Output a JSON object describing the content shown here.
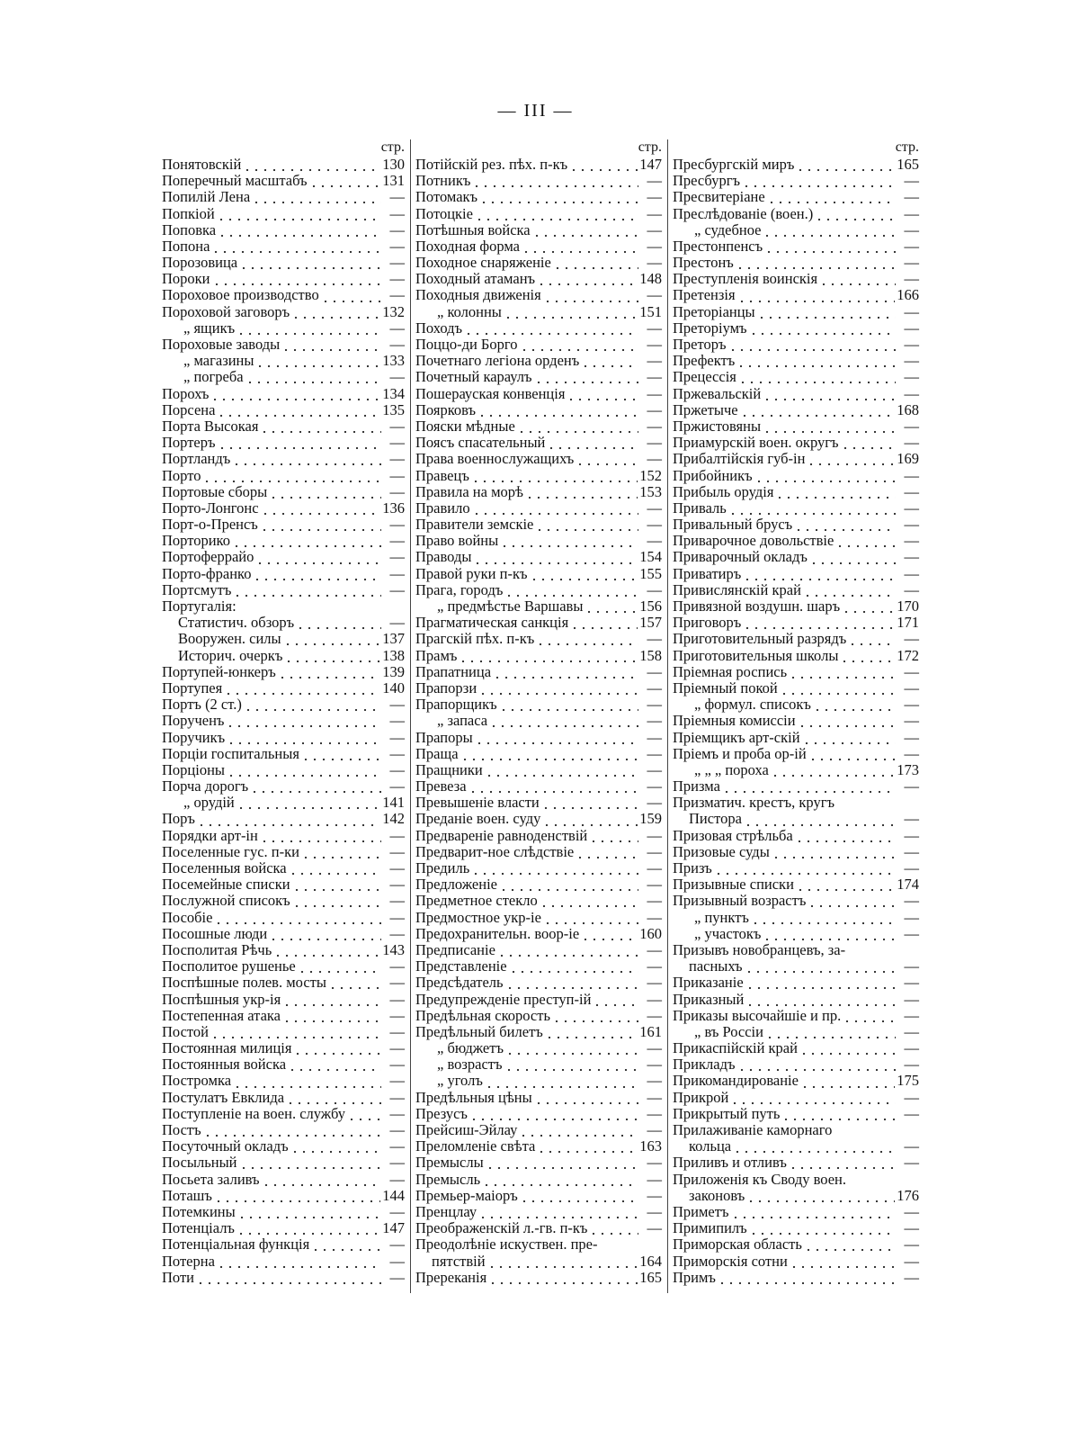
{
  "header": {
    "page_number": "— III —"
  },
  "columns": [
    {
      "page_heading": "стр.",
      "entries": [
        {
          "label": "Понятовскій",
          "page": 130
        },
        {
          "label": "Поперечный масштабъ",
          "page": 131
        },
        {
          "label": "Попилій Лена",
          "page": "—"
        },
        {
          "label": "Попкіой",
          "page": "—"
        },
        {
          "label": "Поповка",
          "page": "—"
        },
        {
          "label": "Попона",
          "page": "—"
        },
        {
          "label": "Порозовица",
          "page": "—"
        },
        {
          "label": "Пороки",
          "page": "—"
        },
        {
          "label": "Пороховое производство",
          "page": "—"
        },
        {
          "label": "Пороховой заговоръ",
          "page": 132
        },
        {
          "label": "„ ящикъ",
          "page": "—"
        },
        {
          "label": "Пороховые заводы",
          "page": "—"
        },
        {
          "label": "„ магазины",
          "page": 133
        },
        {
          "label": "„ погреба",
          "page": "—"
        },
        {
          "label": "Порохъ",
          "page": 134
        },
        {
          "label": "Порсена",
          "page": 135
        },
        {
          "label": "Порта Высокая",
          "page": "—"
        },
        {
          "label": "Портеръ",
          "page": "—"
        },
        {
          "label": "Портландъ",
          "page": "—"
        },
        {
          "label": "Порто",
          "page": "—"
        },
        {
          "label": "Портовые сборы",
          "page": "—"
        },
        {
          "label": "Порто-Лонгонс",
          "page": 136
        },
        {
          "label": "Порт-о-Пренсъ",
          "page": "—"
        },
        {
          "label": "Порторико",
          "page": "—"
        },
        {
          "label": "Портоферрайо",
          "page": "—"
        },
        {
          "label": "Порто-франко",
          "page": "—"
        },
        {
          "label": "Портсмутъ",
          "page": "—"
        },
        {
          "label": "Португалія:",
          "subentries": [
            {
              "label": "Статистич. обзоръ",
              "page": "—"
            },
            {
              "label": "Вооружен. силы",
              "page": 137
            },
            {
              "label": "Историч. очеркъ",
              "page": 138
            }
          ]
        },
        {
          "label": "Портупей-юнкеръ",
          "page": 139
        },
        {
          "label": "Портупея",
          "page": 140
        },
        {
          "label": "Портъ (2 ст.)",
          "page": "—"
        },
        {
          "label": "Порученъ",
          "page": "—"
        },
        {
          "label": "Поручикъ",
          "page": "—"
        },
        {
          "label": "Порціи госпитальныя",
          "page": "—"
        },
        {
          "label": "Порціоны",
          "page": "—"
        },
        {
          "label": "Порча дорогъ",
          "page": "—"
        },
        {
          "label": "„ орудій",
          "page": 141
        },
        {
          "label": "Поръ",
          "page": 142
        },
        {
          "label": "Порядки арт-ін",
          "page": "—"
        },
        {
          "label": "Поселенные гус. п-ки",
          "page": "—"
        },
        {
          "label": "Поселенныя войска",
          "page": "—"
        },
        {
          "label": "Посемейные списки",
          "page": "—"
        },
        {
          "label": "Послужной списокъ",
          "page": "—"
        },
        {
          "label": "Пособіе",
          "page": "—"
        },
        {
          "label": "Посошные люди",
          "page": "—"
        },
        {
          "label": "Посполитая Рѣчь",
          "page": 143
        },
        {
          "label": "Посполитое рушенье",
          "page": "—"
        },
        {
          "label": "Поспѣшные полев. мосты",
          "page": "—"
        },
        {
          "label": "Поспѣшныя укр-ія",
          "page": "—"
        },
        {
          "label": "Постепенная атака",
          "page": "—"
        },
        {
          "label": "Постой",
          "page": "—"
        },
        {
          "label": "Постоянная милиція",
          "page": "—"
        },
        {
          "label": "Постоянныя войска",
          "page": "—"
        },
        {
          "label": "Постромка",
          "page": "—"
        },
        {
          "label": "Постулатъ Евклида",
          "page": "—"
        },
        {
          "label": "Поступленіе на воен. службу",
          "page": "—"
        },
        {
          "label": "Постъ",
          "page": "—"
        },
        {
          "label": "Посуточный окладъ",
          "page": "—"
        },
        {
          "label": "Посыльный",
          "page": "—"
        },
        {
          "label": "Посьета заливъ",
          "page": "—"
        },
        {
          "label": "Поташъ",
          "page": 144
        },
        {
          "label": "Потемкины",
          "page": "—"
        },
        {
          "label": "Потенціалъ",
          "page": 147
        },
        {
          "label": "Потенціальная функція",
          "page": "—"
        },
        {
          "label": "Потерна",
          "page": "—"
        },
        {
          "label": "Поти",
          "page": "—"
        }
      ]
    },
    {
      "page_heading": "стр.",
      "entries": [
        {
          "label": "Потійскій рез. пѣх. п-къ",
          "page": 147
        },
        {
          "label": "Потникъ",
          "page": "—"
        },
        {
          "label": "Потомакъ",
          "page": "—"
        },
        {
          "label": "Потоцкіе",
          "page": "—"
        },
        {
          "label": "Потѣшныя войска",
          "page": "—"
        },
        {
          "label": "Походная форма",
          "page": "—"
        },
        {
          "label": "Походное снаряженіе",
          "page": "—"
        },
        {
          "label": "Походный атаманъ",
          "page": 148
        },
        {
          "label": "Походныя движенія",
          "page": "—"
        },
        {
          "label": "„ колонны",
          "page": 151
        },
        {
          "label": "Походъ",
          "page": "—"
        },
        {
          "label": "Поццо-ди Борго",
          "page": "—"
        },
        {
          "label": "Почетнаго легіона орденъ",
          "page": "—"
        },
        {
          "label": "Почетный караулъ",
          "page": "—"
        },
        {
          "label": "Пошерауская конвенція",
          "page": "—"
        },
        {
          "label": "Поярковъ",
          "page": "—"
        },
        {
          "label": "Пояски мѣдные",
          "page": "—"
        },
        {
          "label": "Поясъ спасательный",
          "page": "—"
        },
        {
          "label": "Права военнослужащихъ",
          "page": "—"
        },
        {
          "label": "Правецъ",
          "page": 152
        },
        {
          "label": "Правила на морѣ",
          "page": 153
        },
        {
          "label": "Правило",
          "page": "—"
        },
        {
          "label": "Правители земскіе",
          "page": "—"
        },
        {
          "label": "Право войны",
          "page": "—"
        },
        {
          "label": "Праводы",
          "page": 154
        },
        {
          "label": "Правой руки п-къ",
          "page": 155
        },
        {
          "label": "Прага, городъ",
          "page": "—"
        },
        {
          "label": "„ предмѣстье Варшавы",
          "page": 156
        },
        {
          "label": "Прагматическая санкція",
          "page": 157
        },
        {
          "label": "Прагскій пѣх. п-къ",
          "page": "—"
        },
        {
          "label": "Прамъ",
          "page": 158
        },
        {
          "label": "Прапатница",
          "page": "—"
        },
        {
          "label": "Прапорзи",
          "page": "—"
        },
        {
          "label": "Прапорщикъ",
          "page": "—"
        },
        {
          "label": "„ запаса",
          "page": "—"
        },
        {
          "label": "Прапоры",
          "page": "—"
        },
        {
          "label": "Праща",
          "page": "—"
        },
        {
          "label": "Пращники",
          "page": "—"
        },
        {
          "label": "Превеза",
          "page": "—"
        },
        {
          "label": "Превышеніе власти",
          "page": "—"
        },
        {
          "label": "Преданіе воен. суду",
          "page": 159
        },
        {
          "label": "Предвареніе равноденствій",
          "page": "—"
        },
        {
          "label": "Предварит-ное слѣдствіе",
          "page": "—"
        },
        {
          "label": "Предиль",
          "page": "—"
        },
        {
          "label": "Предложеніе",
          "page": "—"
        },
        {
          "label": "Предметное стекло",
          "page": "—"
        },
        {
          "label": "Предмостное укр-іе",
          "page": "—"
        },
        {
          "label": "Предохранительн. воор-іе",
          "page": 160
        },
        {
          "label": "Предписаніе",
          "page": "—"
        },
        {
          "label": "Представленіе",
          "page": "—"
        },
        {
          "label": "Предсѣдатель",
          "page": "—"
        },
        {
          "label": "Предупрежденіе преступ-ій",
          "page": "—"
        },
        {
          "label": "Предѣльная скорость",
          "page": "—"
        },
        {
          "label": "Предѣльный билетъ",
          "page": 161
        },
        {
          "label": "„ бюджетъ",
          "page": "—"
        },
        {
          "label": "„ возрастъ",
          "page": "—"
        },
        {
          "label": "„ уголъ",
          "page": "—"
        },
        {
          "label": "Предѣльныя цѣны",
          "page": "—"
        },
        {
          "label": "Презусъ",
          "page": "—"
        },
        {
          "label": "Прейсиш-Эйлау",
          "page": "—"
        },
        {
          "label": "Преломленіе свѣта",
          "page": 163
        },
        {
          "label": "Премыслы",
          "page": "—"
        },
        {
          "label": "Премысль",
          "page": "—"
        },
        {
          "label": "Премьер-маіоръ",
          "page": "—"
        },
        {
          "label": "Пренцлау",
          "page": "—"
        },
        {
          "label": "Преображенскій л.-гв. п-къ",
          "page": "—"
        },
        {
          "lines": [
            "Преодолѣніе искуствен. пре-",
            "пятствій"
          ],
          "page": 164
        },
        {
          "label": "Пререканія",
          "page": 165
        }
      ]
    },
    {
      "page_heading": "стр.",
      "entries": [
        {
          "label": "Пресбургскій миръ",
          "page": 165
        },
        {
          "label": "Пресбургъ",
          "page": "—"
        },
        {
          "label": "Пресвитеріане",
          "page": "—"
        },
        {
          "label": "Преслѣдованіе (воен.)",
          "page": "—"
        },
        {
          "label": "„ судебное",
          "page": "—"
        },
        {
          "label": "Престонпенсъ",
          "page": "—"
        },
        {
          "label": "Престонъ",
          "page": "—"
        },
        {
          "label": "Преступленія воинскія",
          "page": "—"
        },
        {
          "label": "Претензія",
          "page": 166
        },
        {
          "label": "Преторіанцы",
          "page": "—"
        },
        {
          "label": "Преторіумъ",
          "page": "—"
        },
        {
          "label": "Преторъ",
          "page": "—"
        },
        {
          "label": "Префектъ",
          "page": "—"
        },
        {
          "label": "Прецессія",
          "page": "—"
        },
        {
          "label": "Пржевальскій",
          "page": "—"
        },
        {
          "label": "Пржетыче",
          "page": 168
        },
        {
          "label": "Пржистовяны",
          "page": "—"
        },
        {
          "label": "Приамурскій воен. округъ",
          "page": "—"
        },
        {
          "label": "Прибалтійскія губ-ін",
          "page": 169
        },
        {
          "label": "Прибойникъ",
          "page": "—"
        },
        {
          "label": "Прибыль орудія",
          "page": "—"
        },
        {
          "label": "Приваль",
          "page": "—"
        },
        {
          "label": "Привальный брусъ",
          "page": "—"
        },
        {
          "label": "Приварочное довольствіе",
          "page": "—"
        },
        {
          "label": "Приварочный окладъ",
          "page": "—"
        },
        {
          "label": "Приватиръ",
          "page": "—"
        },
        {
          "label": "Привислянскій край",
          "page": "—"
        },
        {
          "label": "Привязной воздушн. шаръ",
          "page": 170
        },
        {
          "label": "Приговоръ",
          "page": 171
        },
        {
          "label": "Приготовительный разрядъ",
          "page": "—"
        },
        {
          "label": "Приготовительныя школы",
          "page": 172
        },
        {
          "label": "Пріемная роспись",
          "page": "—"
        },
        {
          "label": "Пріемный покой",
          "page": "—"
        },
        {
          "label": "„ формул. списокъ",
          "page": "—"
        },
        {
          "label": "Пріемныя комиссіи",
          "page": "—"
        },
        {
          "label": "Пріемщикъ арт-скій",
          "page": "—"
        },
        {
          "label": "Пріемъ и проба ор-ій",
          "page": "—"
        },
        {
          "label": "„ „ „ пороха",
          "page": 173
        },
        {
          "label": "Призма",
          "page": "—"
        },
        {
          "lines": [
            "Призматич. крестъ, кругъ",
            "Пистора"
          ],
          "page": "—"
        },
        {
          "label": "Призовая стрѣльба",
          "page": "—"
        },
        {
          "label": "Призовые суды",
          "page": "—"
        },
        {
          "label": "Призъ",
          "page": "—"
        },
        {
          "label": "Призывные списки",
          "page": 174
        },
        {
          "label": "Призывный возрастъ",
          "page": "—"
        },
        {
          "label": "„ пунктъ",
          "page": "—"
        },
        {
          "label": "„ участокъ",
          "page": "—"
        },
        {
          "lines": [
            "Призывъ новобранцевъ, за-",
            "пасныхъ"
          ],
          "page": "—"
        },
        {
          "label": "Приказаніе",
          "page": "—"
        },
        {
          "label": "Приказный",
          "page": "—"
        },
        {
          "label": "Приказы высочайшіе и пр.",
          "page": "—"
        },
        {
          "label": "„ въ Россіи",
          "page": "—"
        },
        {
          "label": "Прикаспійскій край",
          "page": "—"
        },
        {
          "label": "Прикладъ",
          "page": "—"
        },
        {
          "label": "Прикомандированіе",
          "page": 175
        },
        {
          "label": "Прикрой",
          "page": "—"
        },
        {
          "label": "Прикрытый путь",
          "page": "—"
        },
        {
          "lines": [
            "Прилаживаніе каморнаго",
            "кольца"
          ],
          "page": "—"
        },
        {
          "label": "Приливъ и отливъ",
          "page": "—"
        },
        {
          "lines": [
            "Приложенія къ Своду воен.",
            "законовъ"
          ],
          "page": 176
        },
        {
          "label": "Приметъ",
          "page": "—"
        },
        {
          "label": "Примипилъ",
          "page": "—"
        },
        {
          "label": "Приморская область",
          "page": "—"
        },
        {
          "label": "Приморскія сотни",
          "page": "—"
        },
        {
          "label": "Примъ",
          "page": "—"
        }
      ]
    }
  ]
}
